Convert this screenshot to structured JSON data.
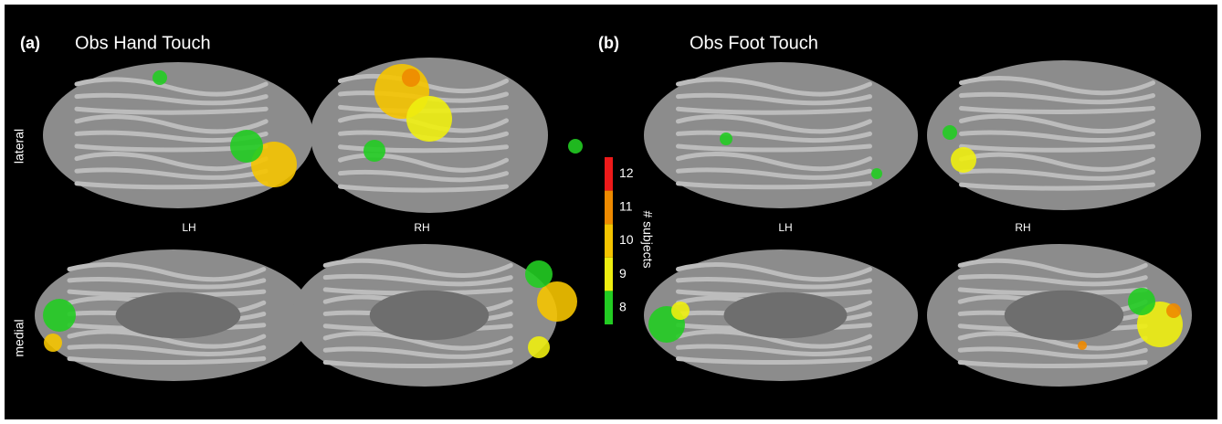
{
  "panels": [
    {
      "letter": "(a)",
      "title": "Obs Hand Touch",
      "hemispheres": [
        "LH",
        "RH"
      ]
    },
    {
      "letter": "(b)",
      "title": "Obs Foot Touch",
      "hemispheres": [
        "LH",
        "RH"
      ]
    }
  ],
  "views": [
    "lateral",
    "medial"
  ],
  "colorbar": {
    "label": "# subjects",
    "ticks": [
      8,
      9,
      10,
      11,
      12
    ],
    "colors": [
      "#22cc22",
      "#eeee10",
      "#f5c400",
      "#ee8a00",
      "#ee1a1a"
    ]
  }
}
